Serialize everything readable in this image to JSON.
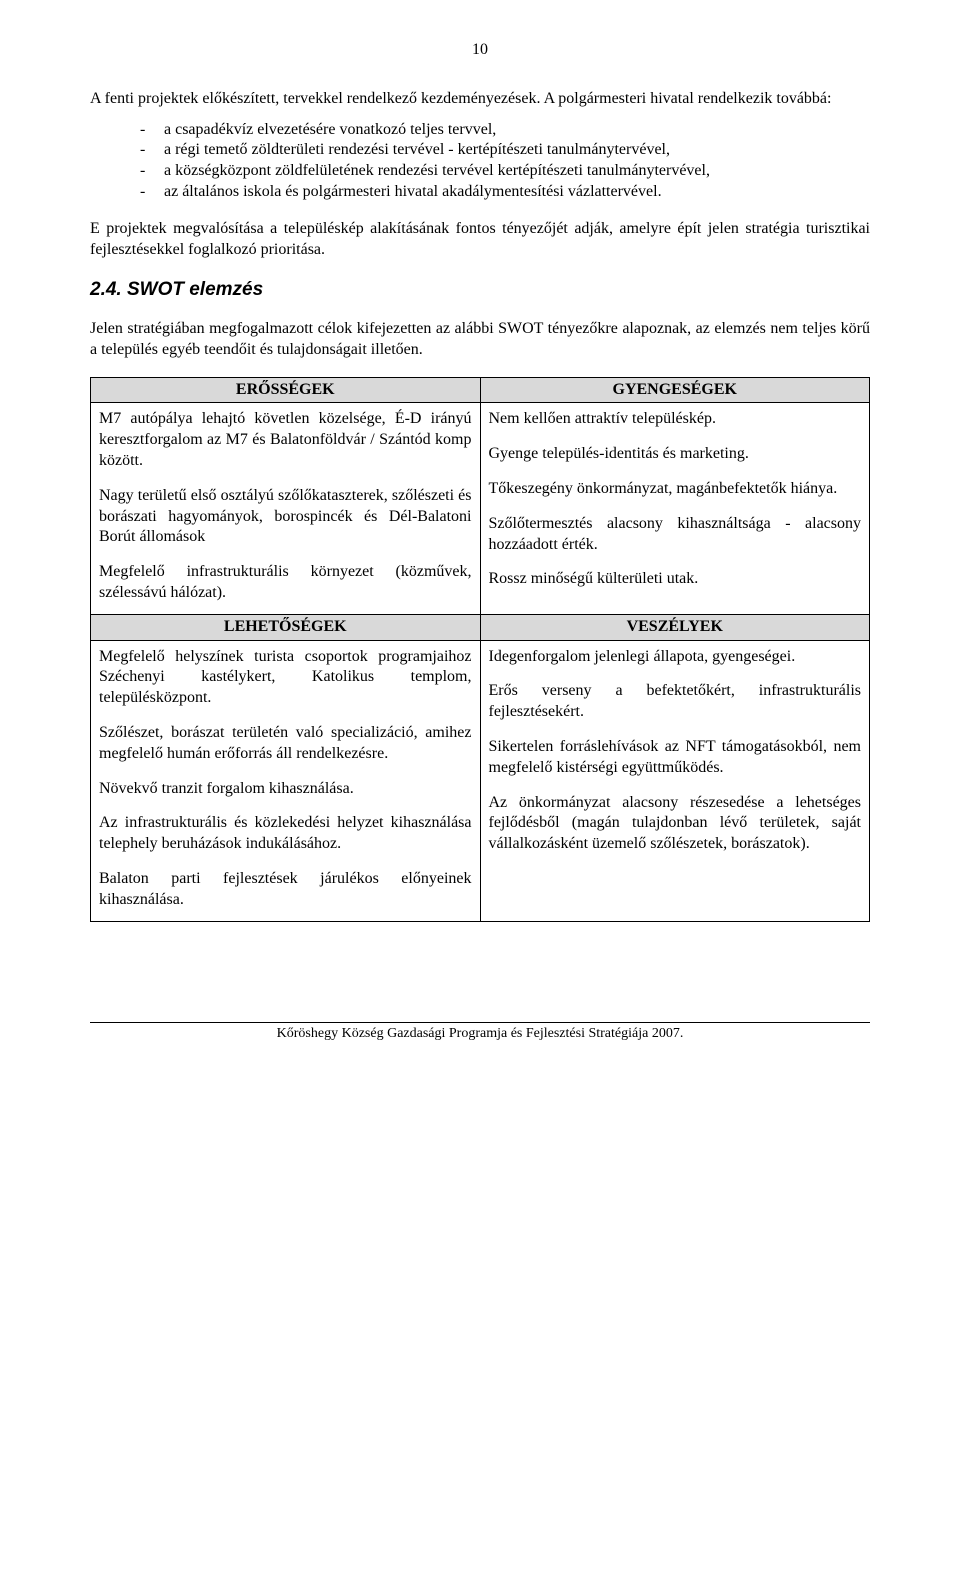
{
  "pageNumber": "10",
  "para1": "A fenti projektek előkészített, tervekkel rendelkező kezdeményezések. A polgármesteri hivatal rendelkezik továbbá:",
  "bullets": [
    "a csapadékvíz elvezetésére vonatkozó teljes tervvel,",
    "a régi temető zöldterületi rendezési tervével - kertépítészeti tanulmánytervével,",
    "a községközpont zöldfelületének rendezési tervével kertépítészeti tanulmánytervével,",
    "az általános iskola és polgármesteri hivatal akadálymentesítési vázlattervével."
  ],
  "para2": "E projektek megvalósítása a településkép alakításának fontos tényezőjét adják, amelyre épít jelen stratégia turisztikai fejlesztésekkel foglalkozó prioritása.",
  "sectionHeading": "2.4. SWOT elemzés",
  "para3": "Jelen stratégiában megfogalmazott célok kifejezetten az alábbi SWOT tényezőkre alapoznak, az elemzés nem teljes körű a település egyéb teendőit és tulajdonságait illetően.",
  "swot": {
    "headerStrengths": "ERŐSSÉGEK",
    "headerWeaknesses": "GYENGESÉGEK",
    "headerOpportunities": "LEHETŐSÉGEK",
    "headerThreats": "VESZÉLYEK",
    "strengths": {
      "p1": "M7 autópálya lehajtó követlen közelsége, É-D irányú keresztforgalom az M7 és Balatonföldvár / Szántód komp között.",
      "p2": "Nagy területű első osztályú szőlőkataszterek, szőlészeti és borászati hagyományok, borospincék és Dél-Balatoni Borút állomások",
      "p3": "Megfelelő infrastrukturális környezet (közművek, szélessávú hálózat)."
    },
    "weaknesses": {
      "p1": "Nem kellően attraktív településkép.",
      "p2": "Gyenge település-identitás és marketing.",
      "p3": "Tőkeszegény önkormányzat, magánbefektetők hiánya.",
      "p4": "Szőlőtermesztés alacsony kihasználtsága - alacsony hozzáadott érték.",
      "p5": "Rossz minőségű külterületi utak."
    },
    "opportunities": {
      "p1": "Megfelelő helyszínek turista csoportok programjaihoz Széchenyi kastélykert, Katolikus templom, településközpont.",
      "p2": "Szőlészet, borászat területén való specializáció, amihez megfelelő humán erőforrás áll rendelkezésre.",
      "p3": "Növekvő tranzit forgalom kihasználása.",
      "p4": "Az infrastrukturális és közlekedési helyzet kihasználása telephely beruházások indukálásához.",
      "p5": "Balaton parti fejlesztések járulékos előnyeinek kihasználása."
    },
    "threats": {
      "p1": "Idegenforgalom jelenlegi állapota, gyengeségei.",
      "p2": "Erős verseny a befektetőkért, infrastrukturális fejlesztésekért.",
      "p3": "Sikertelen forráslehívások az NFT támogatásokból, nem megfelelő kistérségi együttműködés.",
      "p4": "Az önkormányzat alacsony részesedése a lehetséges fejlődésből (magán tulajdonban lévő területek, saját vállalkozásként üzemelő szőlészetek, borászatok)."
    }
  },
  "footer": "Kőröshegy Község Gazdasági Programja és Fejlesztési Stratégiája 2007."
}
